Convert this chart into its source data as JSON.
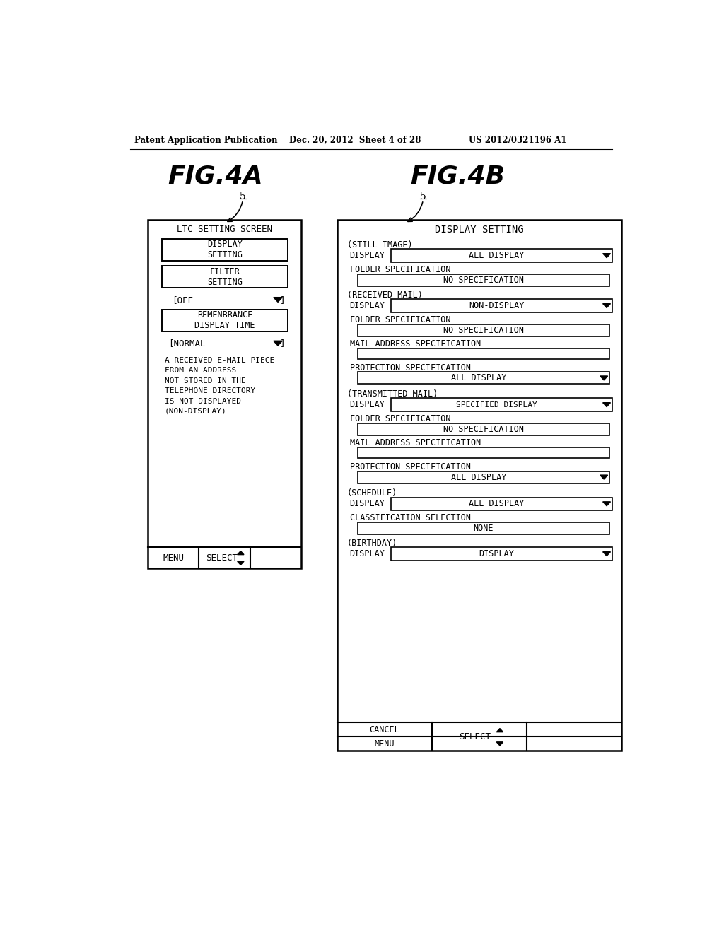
{
  "bg_color": "#ffffff",
  "header_text": "Patent Application Publication",
  "header_date": "Dec. 20, 2012  Sheet 4 of 28",
  "header_patent": "US 2012/0321196 A1",
  "fig4a_title": "FIG.4A",
  "fig4b_title": "FIG.4B",
  "fig4a_screen_title": "LTC SETTING SCREEN",
  "fig4b_screen_title": "DISPLAY SETTING"
}
